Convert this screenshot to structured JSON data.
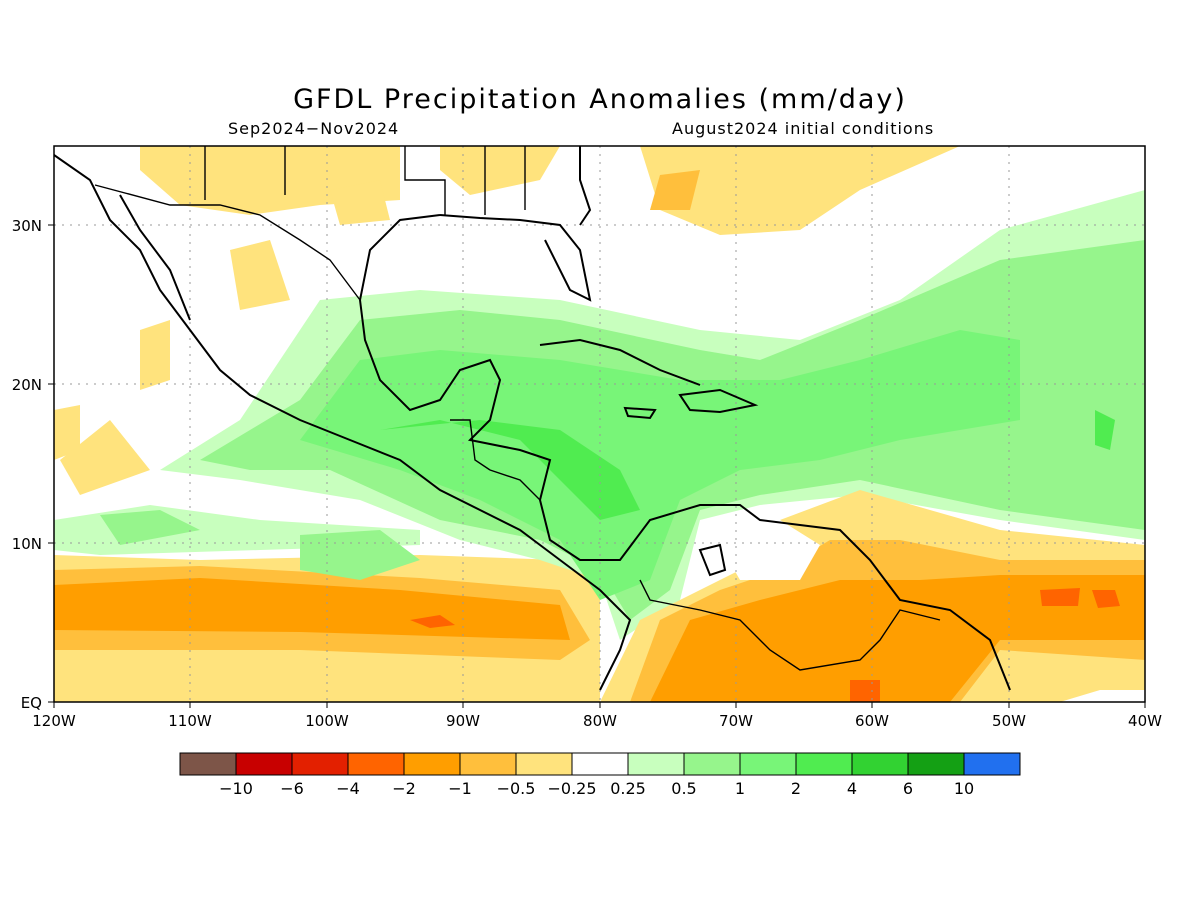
{
  "title": "GFDL Precipitation Anomalies (mm/day)",
  "period": "Sep2024−Nov2024",
  "init": "August2024 initial conditions",
  "map": {
    "lon_range": [
      -120,
      -40
    ],
    "lat_range": [
      0,
      35
    ],
    "x_ticks": [
      "120W",
      "110W",
      "100W",
      "90W",
      "80W",
      "70W",
      "60W",
      "50W",
      "40W"
    ],
    "y_ticks": [
      "EQ",
      "10N",
      "20N",
      "30N"
    ]
  },
  "colorbar": {
    "colors": [
      "#7d5548",
      "#c80000",
      "#e32000",
      "#ff6400",
      "#ff9e00",
      "#ffbf3c",
      "#ffe37d",
      "#ffffff",
      "#c8ffbe",
      "#96f58c",
      "#78f578",
      "#50ec50",
      "#32d232",
      "#14a014",
      "#2170ef"
    ],
    "labels": [
      "−10",
      "−6",
      "−4",
      "−2",
      "−1",
      "−0.5",
      "−0.25",
      "0.25",
      "0.5",
      "1",
      "2",
      "4",
      "6",
      "10"
    ]
  }
}
